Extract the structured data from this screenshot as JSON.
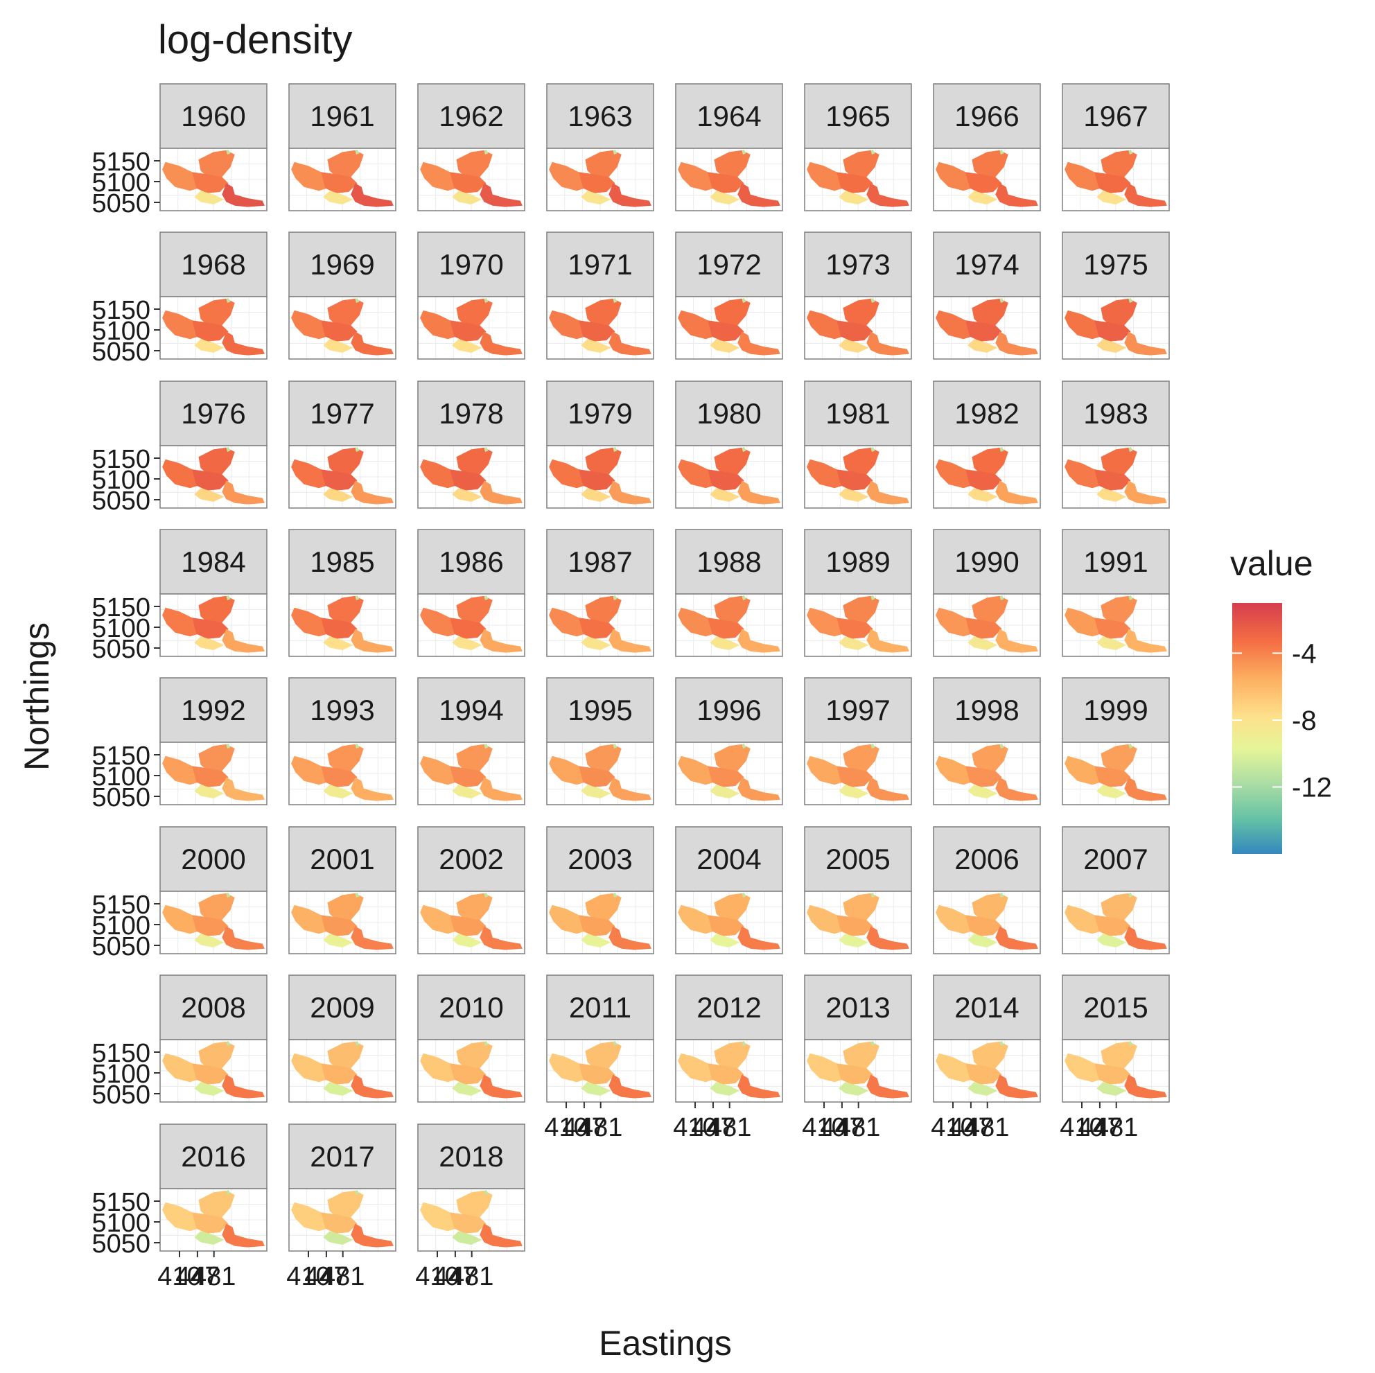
{
  "chart_data": {
    "type": "heatmap",
    "title": "log-density",
    "xlabel": "Eastings",
    "ylabel": "Northings",
    "facets": [
      "1960",
      "1961",
      "1962",
      "1963",
      "1964",
      "1965",
      "1966",
      "1967",
      "1968",
      "1969",
      "1970",
      "1971",
      "1972",
      "1973",
      "1974",
      "1975",
      "1976",
      "1977",
      "1978",
      "1979",
      "1980",
      "1981",
      "1982",
      "1983",
      "1984",
      "1985",
      "1986",
      "1987",
      "1988",
      "1989",
      "1990",
      "1991",
      "1992",
      "1993",
      "1994",
      "1995",
      "1996",
      "1997",
      "1998",
      "1999",
      "2000",
      "2001",
      "2002",
      "2003",
      "2004",
      "2005",
      "2006",
      "2007",
      "2008",
      "2009",
      "2010",
      "2011",
      "2012",
      "2013",
      "2014",
      "2015",
      "2016",
      "2017",
      "2018"
    ],
    "facet_ncol": 8,
    "y_ticks": [
      5050,
      5100,
      5150
    ],
    "ylim": [
      5030,
      5180
    ],
    "x_ticks": [
      410,
      447,
      481
    ],
    "x_tick_labels": [
      "410",
      "447",
      "481"
    ],
    "xlim": [
      370,
      590
    ],
    "legend": {
      "title": "value",
      "position": "right",
      "breaks": [
        -4,
        -8,
        -12
      ],
      "range": [
        -16,
        -1
      ],
      "colors": [
        "#3288bd",
        "#66c2a5",
        "#abdda4",
        "#e6f598",
        "#fee08b",
        "#fdae61",
        "#f46d43",
        "#d53e4f"
      ]
    },
    "east_value_trend": {
      "years": [
        1960,
        1968,
        1976,
        1984,
        1992,
        2000,
        2008,
        2018
      ],
      "east_arm": [
        -2.0,
        -3.0,
        -4.5,
        -5.0,
        -5.5,
        -3.8,
        -3.5,
        -3.5
      ],
      "main_body": [
        -3.5,
        -3.0,
        -2.5,
        -2.8,
        -4.0,
        -4.5,
        -5.5,
        -6.0
      ]
    }
  }
}
